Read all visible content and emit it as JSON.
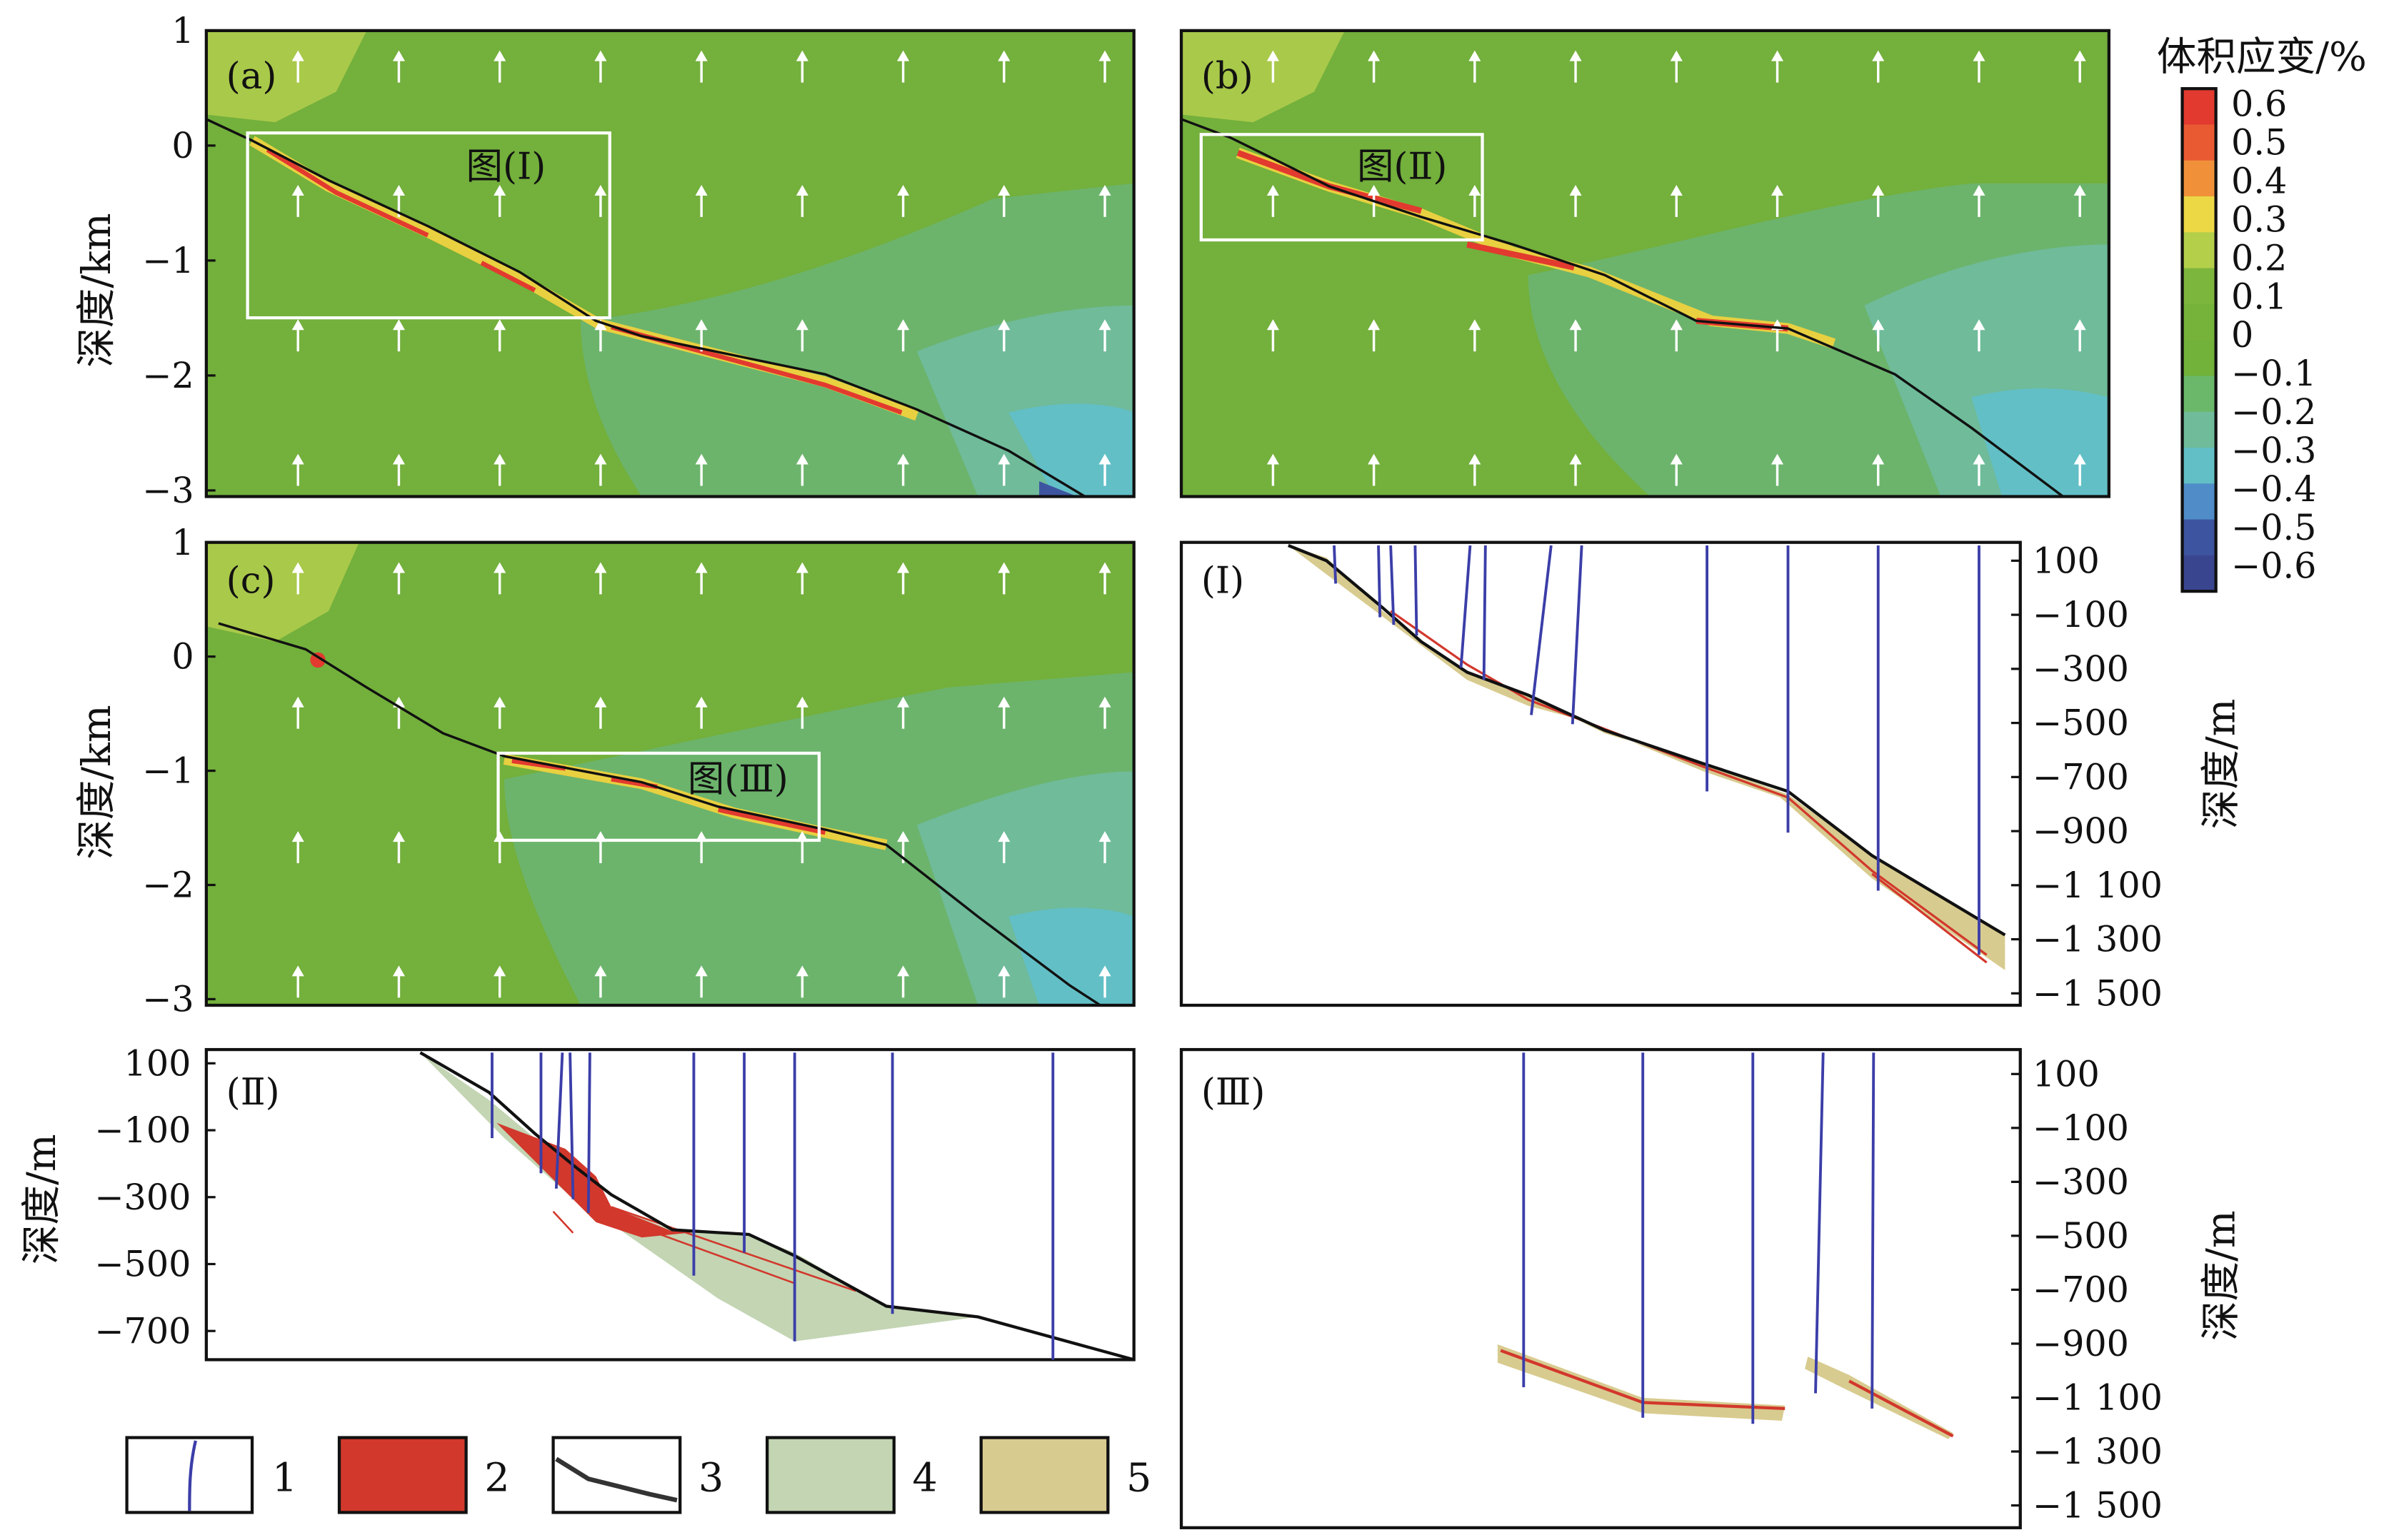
{
  "colorbar": {
    "title": "体积应变/%",
    "labels": [
      "0.6",
      "0.5",
      "0.4",
      "0.3",
      "0.2",
      "0.1",
      "0",
      "−0.1",
      "−0.2",
      "−0.3",
      "−0.4",
      "−0.5",
      "−0.6"
    ],
    "colors": [
      "#e23a2f",
      "#ea5a32",
      "#f0913a",
      "#ecd845",
      "#b4cf4a",
      "#7db63c",
      "#75b33a",
      "#72b23a",
      "#6cb86a",
      "#6fbb9a",
      "#62bfc6",
      "#4f8cc8",
      "#3d55a0",
      "#3a4590"
    ]
  },
  "panels": {
    "a": {
      "label": "(a)",
      "box_label": "图(Ⅰ)"
    },
    "b": {
      "label": "(b)",
      "box_label": "图(Ⅱ)"
    },
    "c": {
      "label": "(c)",
      "box_label": "图(Ⅲ)"
    },
    "I": {
      "label": "(Ⅰ)"
    },
    "II": {
      "label": "(Ⅱ)"
    },
    "III": {
      "label": "(Ⅲ)"
    }
  },
  "axes": {
    "km_label": "深度/km",
    "m_label": "深度/m",
    "km_ticks": [
      "1",
      "0",
      "−1",
      "−2",
      "−3"
    ],
    "m_ticks_long": [
      "100",
      "−100",
      "−300",
      "−500",
      "−700",
      "−900",
      "−1 100",
      "−1 300",
      "−1 500"
    ],
    "m_ticks_short": [
      "100",
      "−100",
      "−300",
      "−500",
      "−700"
    ]
  },
  "legend": {
    "items": [
      {
        "label": "1",
        "symbol": "well-line"
      },
      {
        "label": "2",
        "symbol": "red-fill",
        "color": "#d2382c"
      },
      {
        "label": "3",
        "symbol": "black-line"
      },
      {
        "label": "4",
        "symbol": "green-fill",
        "color": "#c3d5b3"
      },
      {
        "label": "5",
        "symbol": "tan-fill",
        "color": "#d8cb8f"
      }
    ]
  },
  "colors": {
    "well": "#3b3ea8",
    "fault": "#111111",
    "red": "#d2382c",
    "green_zone": "#c3d5b3",
    "tan_zone": "#d8cb8f",
    "base_green": "#73b03c"
  }
}
